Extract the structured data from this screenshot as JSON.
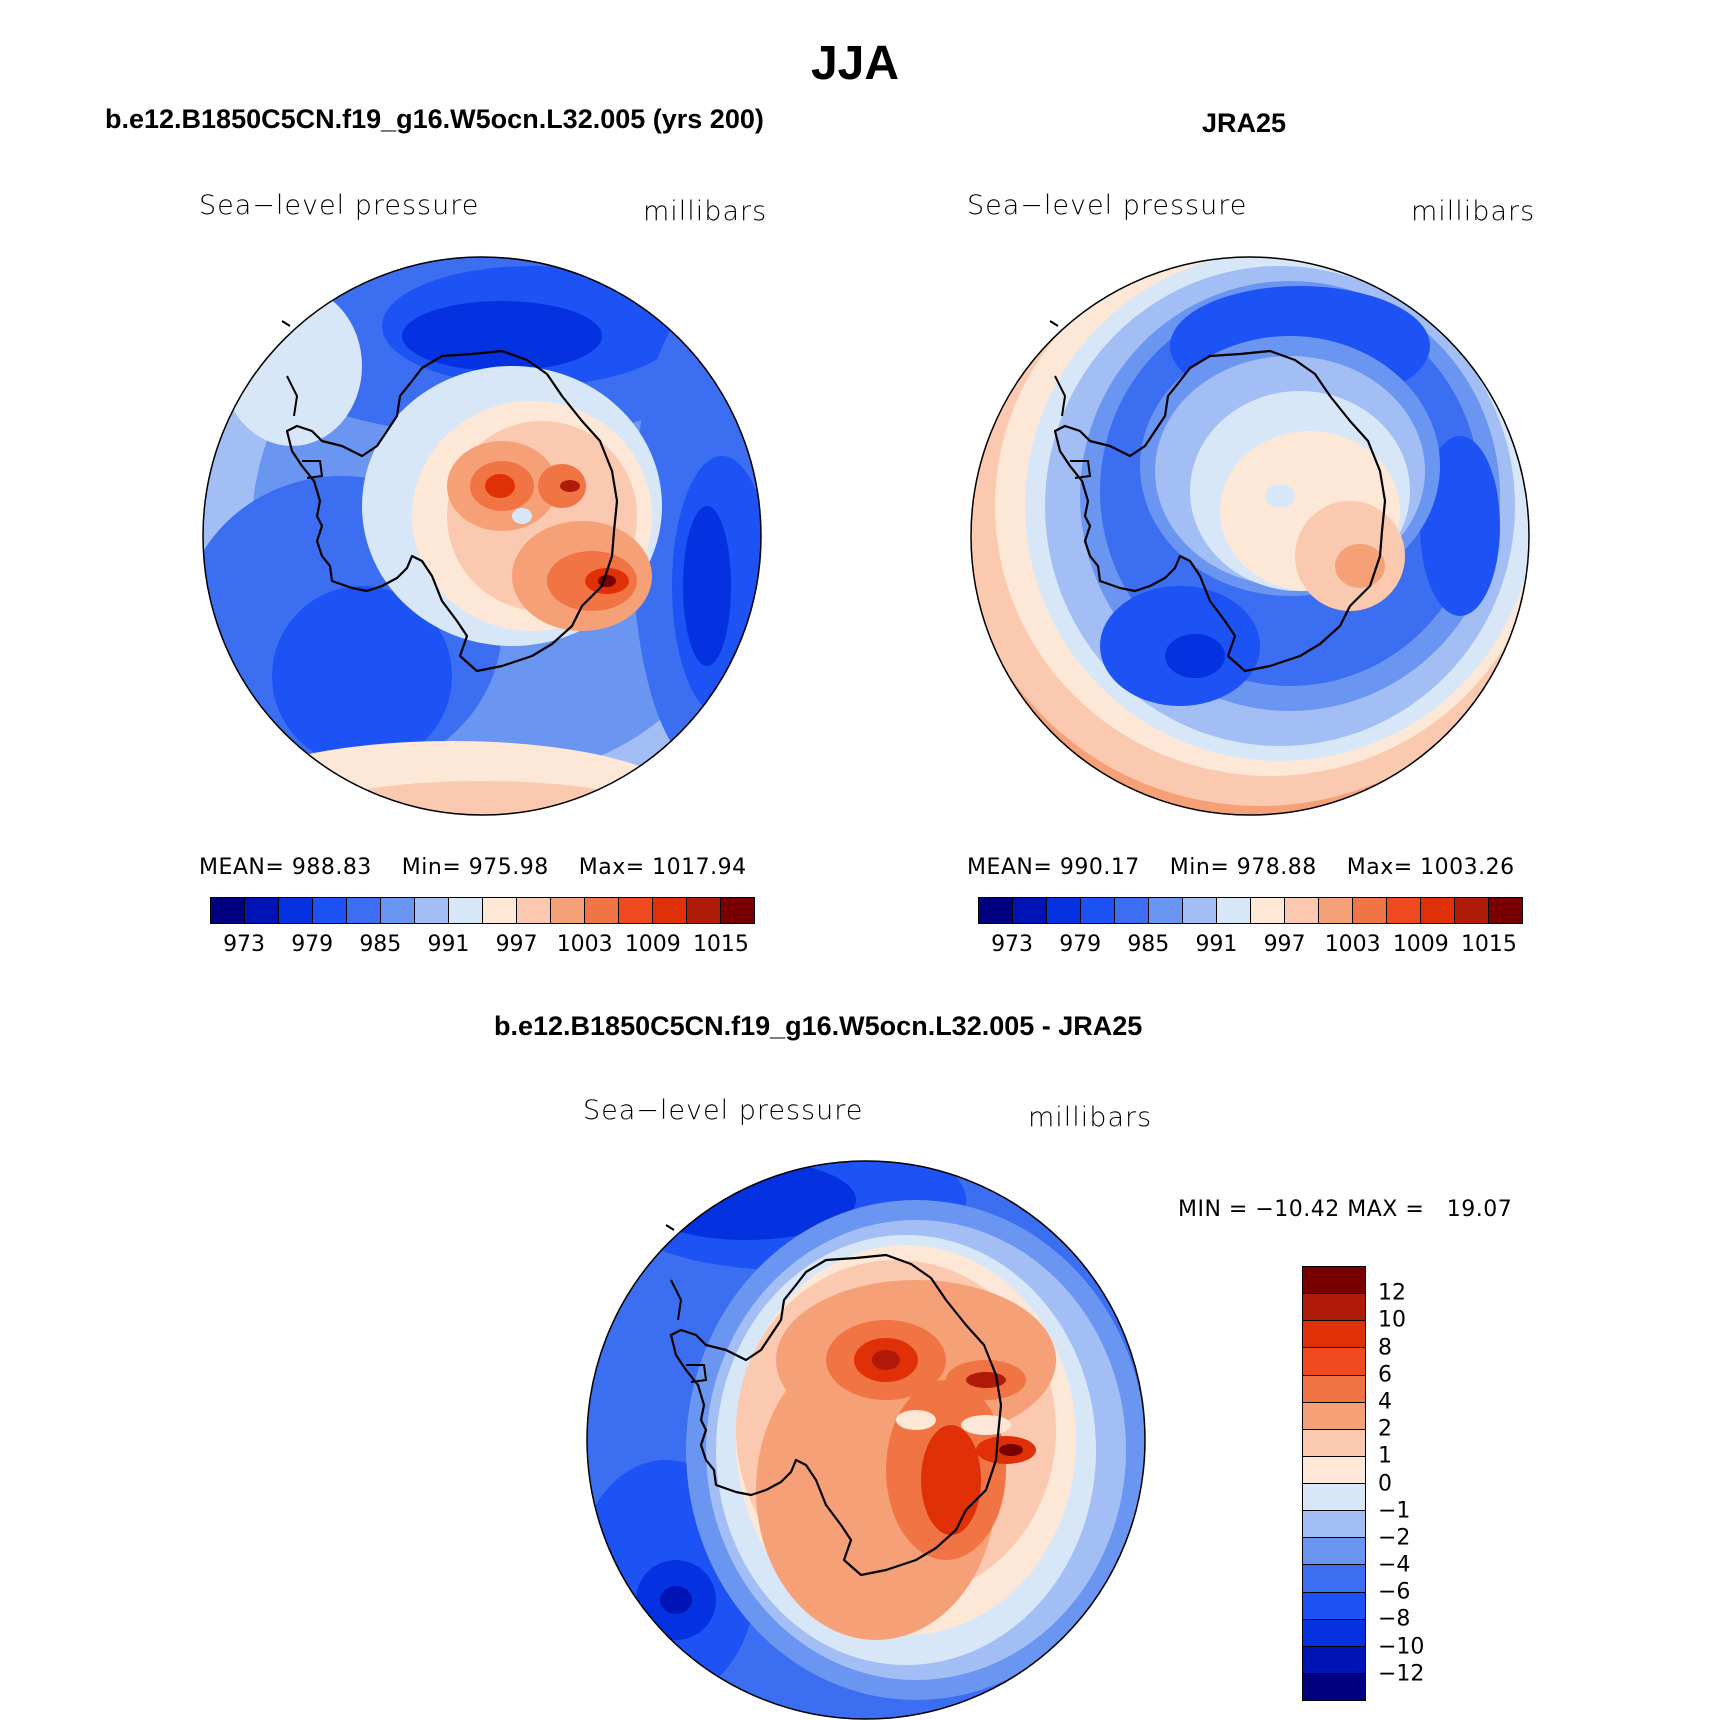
{
  "figure": {
    "title": "JJA",
    "season": "JJA"
  },
  "panels": [
    {
      "case_title": "b.e12.B1850C5CN.f19_g16.W5ocn.L32.005 (yrs 200)",
      "variable": "Sea−level pressure",
      "units": "millibars",
      "stats": {
        "mean_label": "MEAN=",
        "mean": "988.83",
        "min_label": "Min=",
        "min": "975.98",
        "max_label": "Max=",
        "max": "1017.94"
      },
      "colorbar_labels": [
        "973",
        "979",
        "985",
        "991",
        "997",
        "1003",
        "1009",
        "1015"
      ]
    },
    {
      "case_title": "JRA25",
      "variable": "Sea−level pressure",
      "units": "millibars",
      "stats": {
        "mean_label": "MEAN=",
        "mean": "990.17",
        "min_label": "Min=",
        "min": "978.88",
        "max_label": "Max=",
        "max": "1003.26"
      },
      "colorbar_labels": [
        "973",
        "979",
        "985",
        "991",
        "997",
        "1003",
        "1009",
        "1015"
      ]
    },
    {
      "case_title": "b.e12.B1850C5CN.f19_g16.W5ocn.L32.005 - JRA25",
      "variable": "Sea−level pressure",
      "units": "millibars",
      "stats_text": "MIN = −10.42 MAX =   19.07",
      "colorbar_labels": [
        "12",
        "10",
        "8",
        "6",
        "4",
        "2",
        "1",
        "0",
        "−1",
        "−2",
        "−4",
        "−6",
        "−8",
        "−10",
        "−12"
      ]
    }
  ],
  "colors": {
    "abs_scale": [
      "#000080",
      "#0013b4",
      "#0432e0",
      "#1d52f5",
      "#3b6ef0",
      "#6a95f0",
      "#a2bef5",
      "#d8e7f8",
      "#fde8d8",
      "#fbc8b0",
      "#f6a078",
      "#f07444",
      "#f04a20",
      "#e03008",
      "#b01a08",
      "#780000"
    ],
    "diff_scale": [
      "#780000",
      "#b01a08",
      "#e03008",
      "#f04a20",
      "#f07444",
      "#f6a078",
      "#fbc8b0",
      "#fde8d8",
      "#d8e7f8",
      "#a2bef5",
      "#6a95f0",
      "#3b6ef0",
      "#1d52f5",
      "#0432e0",
      "#0013b4",
      "#000080"
    ]
  }
}
